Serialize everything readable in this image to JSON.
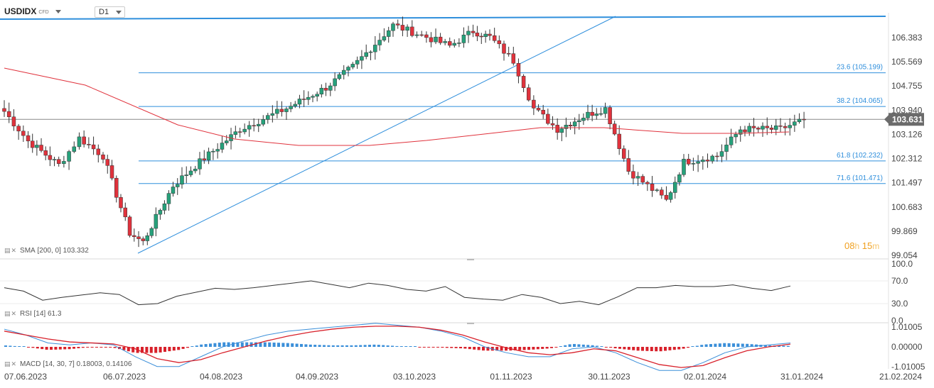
{
  "header": {
    "symbol": "USDIDX",
    "symbol_type": "CFD",
    "timeframe": "D1"
  },
  "indicators": {
    "sma": {
      "label": "SMA",
      "params": "[200, 0]",
      "value": "103.332"
    },
    "rsi": {
      "label": "RSI",
      "params": "[14]",
      "value": "61.3"
    },
    "macd": {
      "label": "MACD",
      "params": "[14, 30, 7]",
      "values": "0.18003, 0.14106"
    }
  },
  "timer": {
    "hours": "08",
    "h_unit": "h",
    "minutes": "15",
    "m_unit": "m"
  },
  "colors": {
    "up": "#26a17b",
    "down": "#e0323c",
    "trendline": "#2f8fdc",
    "sma": "#e0323c",
    "rsi": "#333333",
    "macd": "#3b8fd9",
    "signal": "#d8202a"
  },
  "chart_data": [
    {
      "type": "candlestick",
      "panel": "price",
      "x_labels": [
        "07.06.2023",
        "06.07.2023",
        "04.08.2023",
        "04.09.2023",
        "03.10.2023",
        "01.11.2023",
        "30.11.2023",
        "02.01.2024",
        "31.01.2024",
        "21.02.2024"
      ],
      "y_ticks": [
        "106.383",
        "105.569",
        "104.755",
        "103.940",
        "103.126",
        "102.312",
        "101.497",
        "100.683",
        "99.869",
        "99.054"
      ],
      "ylim": [
        99.054,
        107.0
      ],
      "last_price": "103.631",
      "fib_levels": [
        {
          "label": "23.6 (105.199)",
          "value": 105.199
        },
        {
          "label": "38.2 (104.065)",
          "value": 104.065
        },
        {
          "label": "61.8 (102.232)",
          "value": 102.232
        },
        {
          "label": "71.6 (101.471)",
          "value": 101.471
        }
      ],
      "key_points": [
        {
          "date": "07.06.2023",
          "close": 103.9
        },
        {
          "date": "14.06.2023",
          "close": 102.9
        },
        {
          "date": "23.06.2023",
          "close": 102.1
        },
        {
          "date": "29.06.2023",
          "close": 103.0
        },
        {
          "date": "06.07.2023",
          "close": 102.4
        },
        {
          "date": "14.07.2023",
          "close": 99.8
        },
        {
          "date": "18.07.2023",
          "close": 99.5
        },
        {
          "date": "27.07.2023",
          "close": 101.4
        },
        {
          "date": "04.08.2023",
          "close": 102.2
        },
        {
          "date": "17.08.2023",
          "close": 103.3
        },
        {
          "date": "01.09.2023",
          "close": 104.0
        },
        {
          "date": "13.09.2023",
          "close": 104.7
        },
        {
          "date": "21.09.2023",
          "close": 105.4
        },
        {
          "date": "03.10.2023",
          "close": 106.8
        },
        {
          "date": "13.10.2023",
          "close": 106.4
        },
        {
          "date": "20.10.2023",
          "close": 106.1
        },
        {
          "date": "27.10.2023",
          "close": 106.6
        },
        {
          "date": "01.11.2023",
          "close": 106.4
        },
        {
          "date": "08.11.2023",
          "close": 105.6
        },
        {
          "date": "14.11.2023",
          "close": 104.0
        },
        {
          "date": "21.11.2023",
          "close": 103.3
        },
        {
          "date": "30.11.2023",
          "close": 103.8
        },
        {
          "date": "06.12.2023",
          "close": 104.0
        },
        {
          "date": "14.12.2023",
          "close": 101.9
        },
        {
          "date": "27.12.2023",
          "close": 100.9
        },
        {
          "date": "02.01.2024",
          "close": 102.2
        },
        {
          "date": "12.01.2024",
          "close": 102.4
        },
        {
          "date": "19.01.2024",
          "close": 103.3
        },
        {
          "date": "31.01.2024",
          "close": 103.3
        },
        {
          "date": "05.02.2024",
          "close": 103.631
        }
      ]
    },
    {
      "type": "line",
      "panel": "rsi",
      "y_ticks": [
        "100.0",
        "70.0",
        "30.0",
        "0.0"
      ],
      "ylim": [
        0,
        100
      ],
      "series": [
        {
          "values": [
            58,
            52,
            36,
            41,
            45,
            49,
            46,
            28,
            30,
            43,
            50,
            57,
            55,
            58,
            62,
            66,
            70,
            64,
            58,
            66,
            62,
            55,
            52,
            60,
            41,
            38,
            36,
            46,
            41,
            30,
            34,
            28,
            42,
            58,
            58,
            62,
            60,
            60,
            63,
            57,
            53,
            61
          ]
        }
      ]
    },
    {
      "type": "line+bar",
      "panel": "macd",
      "y_ticks": [
        "1.01005",
        "0.00000",
        "-1.01005"
      ],
      "ylim": [
        -1.6,
        1.6
      ],
      "series": [
        {
          "values": [
            0.9,
            0.6,
            0.2,
            0.1,
            0.2,
            0.1,
            -0.5,
            -1.0,
            -1.0,
            -0.5,
            0.0,
            0.3,
            0.6,
            0.8,
            0.9,
            1.0,
            1.1,
            1.2,
            1.1,
            1.0,
            0.8,
            0.5,
            0.0,
            -0.3,
            -0.5,
            -0.5,
            -0.1,
            0.0,
            -0.3,
            -0.8,
            -1.2,
            -1.2,
            -0.8,
            -0.3,
            0.0,
            0.1,
            0.2
          ]
        },
        {
          "values": [
            0.8,
            0.6,
            0.4,
            0.25,
            0.2,
            0.15,
            -0.1,
            -0.6,
            -0.8,
            -0.65,
            -0.3,
            0.0,
            0.3,
            0.55,
            0.75,
            0.9,
            1.0,
            1.05,
            1.05,
            1.0,
            0.85,
            0.6,
            0.25,
            -0.05,
            -0.3,
            -0.4,
            -0.3,
            -0.1,
            -0.2,
            -0.55,
            -0.9,
            -1.05,
            -0.95,
            -0.55,
            -0.2,
            0.0,
            0.14
          ]
        }
      ]
    }
  ]
}
